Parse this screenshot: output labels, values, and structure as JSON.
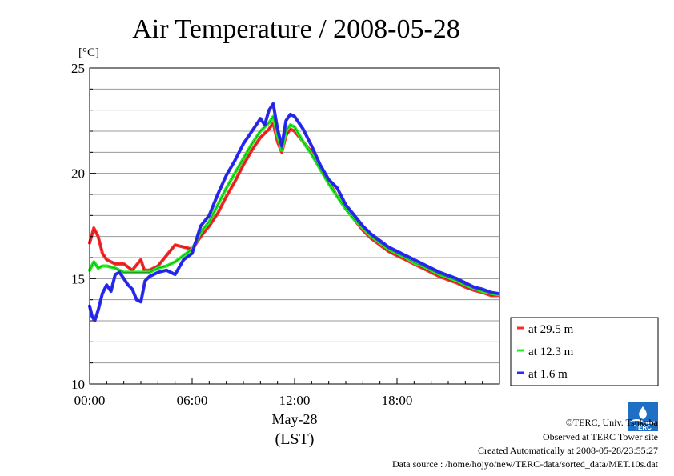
{
  "chart_data": {
    "type": "line",
    "title": "Air Temperature / 2008-05-28",
    "ylabel": "[°C]",
    "xlabel_date": "May-28",
    "xlabel_zone": "(LST)",
    "ylim": [
      10,
      25
    ],
    "yticks": [
      10,
      15,
      20,
      25
    ],
    "xlim_hours": [
      0,
      24
    ],
    "xticks_hours": [
      0,
      6,
      12,
      18
    ],
    "xtick_labels": [
      "00:00",
      "06:00",
      "12:00",
      "18:00"
    ],
    "grid": "horizontal, every 1 °C",
    "legend_position": "right",
    "series": [
      {
        "name": "at 29.5 m",
        "color": "#ff2a2a",
        "points": [
          [
            0.0,
            16.7
          ],
          [
            0.25,
            17.4
          ],
          [
            0.5,
            17.0
          ],
          [
            0.75,
            16.2
          ],
          [
            1.0,
            15.9
          ],
          [
            1.5,
            15.7
          ],
          [
            2.0,
            15.7
          ],
          [
            2.5,
            15.4
          ],
          [
            3.0,
            15.9
          ],
          [
            3.2,
            15.4
          ],
          [
            3.5,
            15.4
          ],
          [
            4.0,
            15.6
          ],
          [
            4.5,
            16.1
          ],
          [
            5.0,
            16.6
          ],
          [
            5.5,
            16.5
          ],
          [
            6.0,
            16.4
          ],
          [
            6.5,
            17.0
          ],
          [
            7.0,
            17.5
          ],
          [
            7.5,
            18.1
          ],
          [
            8.0,
            18.9
          ],
          [
            8.5,
            19.6
          ],
          [
            9.0,
            20.4
          ],
          [
            9.5,
            21.1
          ],
          [
            10.0,
            21.7
          ],
          [
            10.5,
            22.1
          ],
          [
            10.75,
            22.4
          ],
          [
            11.0,
            21.5
          ],
          [
            11.25,
            21.0
          ],
          [
            11.5,
            21.8
          ],
          [
            11.75,
            22.1
          ],
          [
            12.0,
            22.0
          ],
          [
            12.5,
            21.5
          ],
          [
            13.0,
            21.0
          ],
          [
            13.5,
            20.3
          ],
          [
            14.0,
            19.6
          ],
          [
            14.5,
            18.9
          ],
          [
            15.0,
            18.4
          ],
          [
            15.5,
            17.8
          ],
          [
            16.0,
            17.3
          ],
          [
            16.5,
            16.9
          ],
          [
            17.0,
            16.6
          ],
          [
            17.5,
            16.3
          ],
          [
            18.0,
            16.1
          ],
          [
            18.5,
            15.9
          ],
          [
            19.0,
            15.7
          ],
          [
            19.5,
            15.5
          ],
          [
            20.0,
            15.3
          ],
          [
            20.5,
            15.1
          ],
          [
            21.0,
            14.95
          ],
          [
            21.5,
            14.8
          ],
          [
            22.0,
            14.6
          ],
          [
            22.5,
            14.45
          ],
          [
            23.0,
            14.35
          ],
          [
            23.5,
            14.2
          ],
          [
            23.9,
            14.2
          ]
        ]
      },
      {
        "name": "at 12.3 m",
        "color": "#22ee22",
        "points": [
          [
            0.0,
            15.4
          ],
          [
            0.25,
            15.8
          ],
          [
            0.5,
            15.5
          ],
          [
            0.75,
            15.6
          ],
          [
            1.0,
            15.6
          ],
          [
            1.5,
            15.5
          ],
          [
            2.0,
            15.3
          ],
          [
            2.5,
            15.3
          ],
          [
            3.0,
            15.3
          ],
          [
            3.5,
            15.3
          ],
          [
            4.0,
            15.5
          ],
          [
            4.5,
            15.6
          ],
          [
            5.0,
            15.8
          ],
          [
            5.5,
            16.1
          ],
          [
            6.0,
            16.4
          ],
          [
            6.5,
            17.2
          ],
          [
            7.0,
            17.7
          ],
          [
            7.5,
            18.5
          ],
          [
            8.0,
            19.3
          ],
          [
            8.5,
            20.0
          ],
          [
            9.0,
            20.7
          ],
          [
            9.5,
            21.4
          ],
          [
            10.0,
            22.0
          ],
          [
            10.5,
            22.4
          ],
          [
            10.75,
            22.7
          ],
          [
            11.0,
            21.8
          ],
          [
            11.25,
            21.1
          ],
          [
            11.5,
            22.0
          ],
          [
            11.75,
            22.3
          ],
          [
            12.0,
            22.2
          ],
          [
            12.5,
            21.5
          ],
          [
            13.0,
            20.9
          ],
          [
            13.5,
            20.2
          ],
          [
            14.0,
            19.5
          ],
          [
            14.5,
            18.9
          ],
          [
            15.0,
            18.3
          ],
          [
            15.5,
            17.8
          ],
          [
            16.0,
            17.4
          ],
          [
            16.5,
            17.0
          ],
          [
            17.0,
            16.7
          ],
          [
            17.5,
            16.4
          ],
          [
            18.0,
            16.2
          ],
          [
            18.5,
            16.0
          ],
          [
            19.0,
            15.75
          ],
          [
            19.5,
            15.6
          ],
          [
            20.0,
            15.4
          ],
          [
            20.5,
            15.2
          ],
          [
            21.0,
            15.05
          ],
          [
            21.5,
            14.9
          ],
          [
            22.0,
            14.7
          ],
          [
            22.5,
            14.55
          ],
          [
            23.0,
            14.4
          ],
          [
            23.5,
            14.3
          ],
          [
            23.9,
            14.25
          ]
        ]
      },
      {
        "name": "at 1.6 m",
        "color": "#2a2aff",
        "points": [
          [
            0.0,
            13.7
          ],
          [
            0.15,
            13.2
          ],
          [
            0.3,
            13.0
          ],
          [
            0.5,
            13.5
          ],
          [
            0.75,
            14.3
          ],
          [
            1.0,
            14.7
          ],
          [
            1.25,
            14.4
          ],
          [
            1.5,
            15.2
          ],
          [
            1.75,
            15.3
          ],
          [
            2.0,
            15.0
          ],
          [
            2.25,
            14.7
          ],
          [
            2.5,
            14.5
          ],
          [
            2.75,
            14.0
          ],
          [
            3.0,
            13.9
          ],
          [
            3.25,
            14.9
          ],
          [
            3.5,
            15.1
          ],
          [
            4.0,
            15.3
          ],
          [
            4.5,
            15.4
          ],
          [
            5.0,
            15.2
          ],
          [
            5.5,
            15.9
          ],
          [
            6.0,
            16.2
          ],
          [
            6.5,
            17.5
          ],
          [
            7.0,
            18.0
          ],
          [
            7.5,
            19.0
          ],
          [
            8.0,
            19.9
          ],
          [
            8.5,
            20.6
          ],
          [
            9.0,
            21.4
          ],
          [
            9.5,
            22.0
          ],
          [
            10.0,
            22.6
          ],
          [
            10.25,
            22.3
          ],
          [
            10.5,
            23.0
          ],
          [
            10.75,
            23.3
          ],
          [
            11.0,
            22.1
          ],
          [
            11.25,
            21.3
          ],
          [
            11.5,
            22.5
          ],
          [
            11.75,
            22.8
          ],
          [
            12.0,
            22.7
          ],
          [
            12.5,
            22.1
          ],
          [
            13.0,
            21.3
          ],
          [
            13.5,
            20.4
          ],
          [
            14.0,
            19.7
          ],
          [
            14.5,
            19.3
          ],
          [
            15.0,
            18.5
          ],
          [
            15.5,
            18.0
          ],
          [
            16.0,
            17.5
          ],
          [
            16.5,
            17.1
          ],
          [
            17.0,
            16.8
          ],
          [
            17.5,
            16.5
          ],
          [
            18.0,
            16.3
          ],
          [
            18.5,
            16.1
          ],
          [
            19.0,
            15.9
          ],
          [
            19.5,
            15.7
          ],
          [
            20.0,
            15.5
          ],
          [
            20.5,
            15.3
          ],
          [
            21.0,
            15.15
          ],
          [
            21.5,
            15.0
          ],
          [
            22.0,
            14.8
          ],
          [
            22.5,
            14.6
          ],
          [
            23.0,
            14.5
          ],
          [
            23.5,
            14.35
          ],
          [
            23.9,
            14.3
          ]
        ]
      }
    ]
  },
  "credits": {
    "copyright": "©TERC, Univ. Tsukuba",
    "site": "Observed at TERC Tower site",
    "created": "Created Automatically at 2008-05-28/23:55:27",
    "source": "Data source : /home/hojyo/new/TERC-data/sorted_data/MET.10s.dat"
  },
  "logo_text": "TERC"
}
